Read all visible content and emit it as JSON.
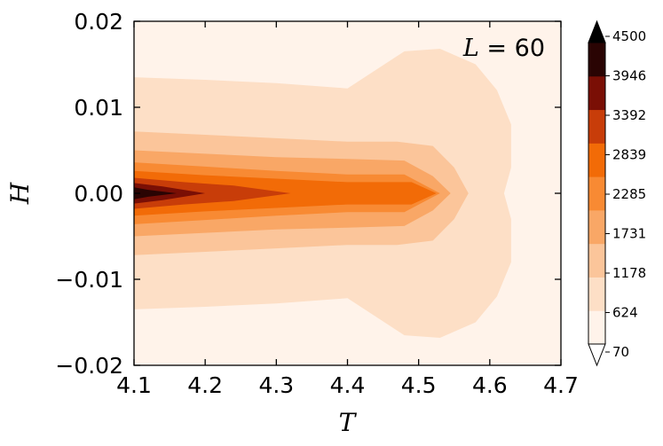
{
  "chart_data": {
    "type": "filled-contour",
    "annotation": {
      "symbol": "L",
      "value": "60"
    },
    "xlabel": "T",
    "ylabel": "H",
    "xlim": [
      4.1,
      4.7
    ],
    "ylim": [
      -0.02,
      0.02
    ],
    "x_ticks": [
      "4.1",
      "4.2",
      "4.3",
      "4.4",
      "4.5",
      "4.6",
      "4.7"
    ],
    "y_ticks": [
      "−0.02",
      "−0.01",
      "0.00",
      "0.01",
      "0.02"
    ],
    "colorbar": {
      "min": 70,
      "max": 4500,
      "ticks": [
        "70",
        "624",
        "1178",
        "1731",
        "2285",
        "2839",
        "3392",
        "3946",
        "4500"
      ],
      "extend": "both",
      "colormap": "gist_heat_r"
    },
    "contour_bands": [
      {
        "level": 70,
        "t": [
          4.1,
          4.2,
          4.3,
          4.4,
          4.48,
          4.53,
          4.58,
          4.61,
          4.63,
          4.63,
          4.62,
          4.7
        ],
        "half_width": [
          0.02,
          0.02,
          0.02,
          0.02,
          0.02,
          0.02,
          0.02,
          0.02,
          0.02,
          0.02,
          0.02,
          0.02
        ],
        "color": "#fff3ea"
      },
      {
        "level": 624,
        "t": [
          4.1,
          4.2,
          4.3,
          4.4,
          4.48,
          4.53,
          4.58,
          4.61,
          4.63,
          4.63,
          4.62
        ],
        "half_width": [
          0.0135,
          0.0132,
          0.0128,
          0.0122,
          0.0165,
          0.0168,
          0.015,
          0.012,
          0.008,
          0.003,
          0.0
        ],
        "color": "#fddfc6"
      },
      {
        "level": 1178,
        "t": [
          4.1,
          4.2,
          4.3,
          4.4,
          4.47,
          4.52,
          4.55,
          4.57
        ],
        "half_width": [
          0.0072,
          0.0068,
          0.0064,
          0.006,
          0.006,
          0.0055,
          0.003,
          0.0
        ],
        "color": "#fbc59a"
      },
      {
        "level": 1731,
        "t": [
          4.1,
          4.2,
          4.3,
          4.4,
          4.48,
          4.52,
          4.545
        ],
        "half_width": [
          0.005,
          0.0046,
          0.0042,
          0.004,
          0.0038,
          0.002,
          0.0
        ],
        "color": "#f9a766"
      },
      {
        "level": 2285,
        "t": [
          4.1,
          4.2,
          4.3,
          4.4,
          4.48,
          4.53
        ],
        "half_width": [
          0.0036,
          0.0031,
          0.0026,
          0.0022,
          0.0022,
          0.0
        ],
        "color": "#f88a33"
      },
      {
        "level": 2839,
        "t": [
          4.1,
          4.2,
          4.3,
          4.4,
          4.49,
          4.525
        ],
        "half_width": [
          0.0026,
          0.0021,
          0.0017,
          0.0013,
          0.0013,
          0.0
        ],
        "color": "#f26b07"
      },
      {
        "level": 3392,
        "t": [
          4.1,
          4.17,
          4.24,
          4.32
        ],
        "half_width": [
          0.0018,
          0.0013,
          0.0009,
          0.0
        ],
        "color": "#c83d09"
      },
      {
        "level": 3946,
        "t": [
          4.1,
          4.14,
          4.2
        ],
        "half_width": [
          0.0012,
          0.0008,
          0.0
        ],
        "color": "#7a0f05"
      },
      {
        "level": 4500,
        "t": [
          4.1,
          4.12,
          4.16
        ],
        "half_width": [
          0.0007,
          0.0004,
          0.0
        ],
        "color": "#2a0403"
      }
    ],
    "colors": {
      "background": "#fff3ea",
      "outer_contour": "#fddfc6",
      "peak": "#000000"
    }
  }
}
